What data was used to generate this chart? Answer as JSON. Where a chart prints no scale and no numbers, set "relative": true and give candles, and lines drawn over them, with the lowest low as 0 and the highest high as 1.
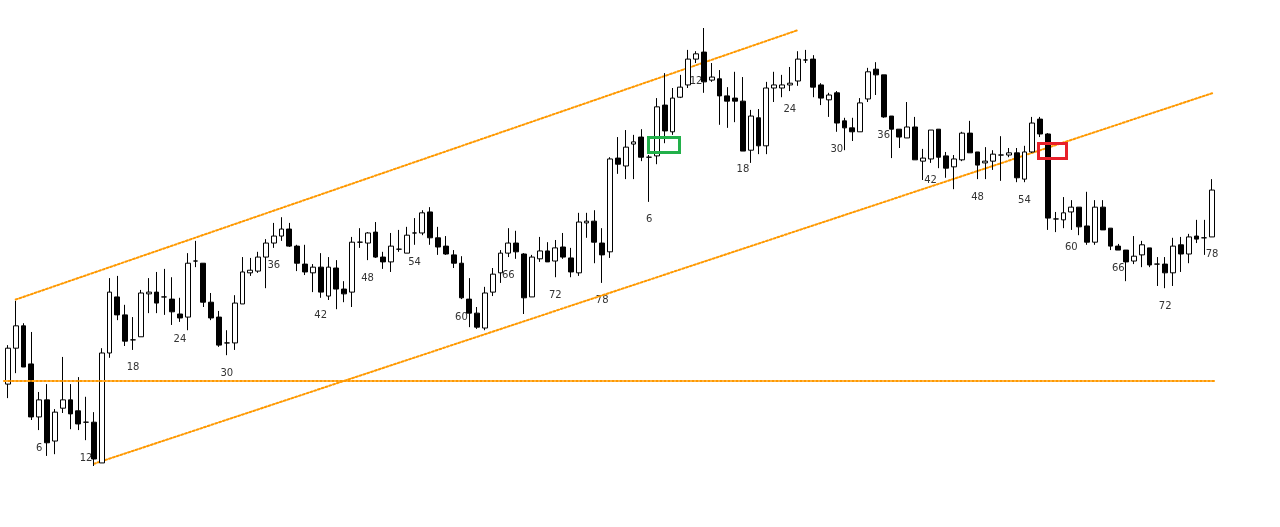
{
  "chart_data": {
    "type": "candlestick",
    "relative": true,
    "tick_labels": "x",
    "categories": [
      null,
      null,
      null,
      null,
      "6",
      null,
      null,
      null,
      null,
      null,
      "12",
      null,
      null,
      null,
      null,
      null,
      "18",
      null,
      null,
      null,
      null,
      null,
      "24",
      null,
      null,
      null,
      null,
      null,
      "30",
      null,
      null,
      null,
      null,
      null,
      "36",
      null,
      null,
      null,
      null,
      null,
      "42",
      null,
      null,
      null,
      null,
      null,
      "48",
      null,
      null,
      null,
      null,
      null,
      "54",
      null,
      null,
      null,
      null,
      null,
      "60",
      null,
      null,
      null,
      null,
      null,
      "66",
      null,
      null,
      null,
      null,
      null,
      "72",
      null,
      null,
      null,
      null,
      null,
      "78",
      null,
      null,
      null,
      null,
      null,
      "6",
      null,
      null,
      null,
      null,
      null,
      "12",
      null,
      null,
      null,
      null,
      null,
      "18",
      null,
      null,
      null,
      null,
      null,
      "24",
      null,
      null,
      null,
      null,
      null,
      "30",
      null,
      null,
      null,
      null,
      null,
      "36",
      null,
      null,
      null,
      null,
      null,
      "42",
      null,
      null,
      null,
      null,
      null,
      "48",
      null,
      null,
      null,
      null,
      null,
      "54",
      null,
      null,
      null,
      null,
      null,
      "60",
      null,
      null,
      null,
      null,
      null,
      "66",
      null,
      null,
      null,
      null,
      null,
      "72",
      null,
      null,
      null,
      null,
      null,
      "78"
    ],
    "ohlc": [
      [
        0.187,
        0.276,
        0.155,
        0.269
      ],
      [
        0.269,
        0.377,
        0.212,
        0.32
      ],
      [
        0.32,
        0.326,
        0.226,
        0.226
      ],
      [
        0.233,
        0.306,
        0.105,
        0.112
      ],
      [
        0.112,
        0.169,
        0.082,
        0.151
      ],
      [
        0.151,
        0.187,
        0.023,
        0.053
      ],
      [
        0.057,
        0.13,
        0.027,
        0.123
      ],
      [
        0.132,
        0.249,
        0.121,
        0.151
      ],
      [
        0.151,
        0.187,
        0.084,
        0.119
      ],
      [
        0.126,
        0.203,
        0.082,
        0.096
      ],
      [
        0.1,
        0.158,
        0.059,
        0.1
      ],
      [
        0.1,
        0.123,
        0,
        0.016
      ],
      [
        0.007,
        0.269,
        0.007,
        0.258
      ],
      [
        0.258,
        0.429,
        0.247,
        0.397
      ],
      [
        0.386,
        0.434,
        0.333,
        0.345
      ],
      [
        0.345,
        0.368,
        0.274,
        0.285
      ],
      [
        0.288,
        0.34,
        0.265,
        0.288
      ],
      [
        0.295,
        0.402,
        0.295,
        0.395
      ],
      [
        0.393,
        0.429,
        0.349,
        0.397
      ],
      [
        0.397,
        0.443,
        0.349,
        0.372
      ],
      [
        0.386,
        0.45,
        0.345,
        0.386
      ],
      [
        0.381,
        0.431,
        0.322,
        0.352
      ],
      [
        0.347,
        0.384,
        0.329,
        0.338
      ],
      [
        0.34,
        0.486,
        0.31,
        0.463
      ],
      [
        0.468,
        0.514,
        0.454,
        0.468
      ],
      [
        0.463,
        0.463,
        0.363,
        0.374
      ],
      [
        0.374,
        0.395,
        0.333,
        0.338
      ],
      [
        0.34,
        0.354,
        0.272,
        0.276
      ],
      [
        0.281,
        0.31,
        0.253,
        0.281
      ],
      [
        0.281,
        0.39,
        0.265,
        0.372
      ],
      [
        0.37,
        0.477,
        0.37,
        0.443
      ],
      [
        0.441,
        0.475,
        0.434,
        0.447
      ],
      [
        0.445,
        0.489,
        0.441,
        0.477
      ],
      [
        0.477,
        0.518,
        0.406,
        0.509
      ],
      [
        0.509,
        0.555,
        0.498,
        0.525
      ],
      [
        0.525,
        0.568,
        0.514,
        0.541
      ],
      [
        0.541,
        0.555,
        0.5,
        0.502
      ],
      [
        0.502,
        0.505,
        0.445,
        0.463
      ],
      [
        0.461,
        0.505,
        0.436,
        0.443
      ],
      [
        0.441,
        0.461,
        0.397,
        0.454
      ],
      [
        0.454,
        0.486,
        0.384,
        0.397
      ],
      [
        0.388,
        0.477,
        0.379,
        0.454
      ],
      [
        0.452,
        0.47,
        0.358,
        0.404
      ],
      [
        0.404,
        0.422,
        0.374,
        0.393
      ],
      [
        0.397,
        0.523,
        0.363,
        0.511
      ],
      [
        0.511,
        0.543,
        0.498,
        0.511
      ],
      [
        0.509,
        0.534,
        0.47,
        0.532
      ],
      [
        0.534,
        0.557,
        0.475,
        0.477
      ],
      [
        0.477,
        0.489,
        0.45,
        0.466
      ],
      [
        0.466,
        0.532,
        0.443,
        0.502
      ],
      [
        0.495,
        0.539,
        0.489,
        0.495
      ],
      [
        0.486,
        0.546,
        0.486,
        0.527
      ],
      [
        0.532,
        0.566,
        0.505,
        0.532
      ],
      [
        0.532,
        0.584,
        0.527,
        0.578
      ],
      [
        0.58,
        0.591,
        0.505,
        0.521
      ],
      [
        0.521,
        0.546,
        0.482,
        0.5
      ],
      [
        0.502,
        0.525,
        0.482,
        0.484
      ],
      [
        0.482,
        0.493,
        0.452,
        0.463
      ],
      [
        0.463,
        0.479,
        0.381,
        0.384
      ],
      [
        0.381,
        0.429,
        0.317,
        0.349
      ],
      [
        0.349,
        0.363,
        0.313,
        0.317
      ],
      [
        0.315,
        0.409,
        0.31,
        0.395
      ],
      [
        0.397,
        0.452,
        0.388,
        0.438
      ],
      [
        0.441,
        0.493,
        0.418,
        0.486
      ],
      [
        0.486,
        0.543,
        0.477,
        0.509
      ],
      [
        0.509,
        0.537,
        0.473,
        0.489
      ],
      [
        0.484,
        0.486,
        0.347,
        0.384
      ],
      [
        0.386,
        0.482,
        0.386,
        0.477
      ],
      [
        0.473,
        0.523,
        0.466,
        0.491
      ],
      [
        0.491,
        0.511,
        0.466,
        0.466
      ],
      [
        0.468,
        0.516,
        0.431,
        0.498
      ],
      [
        0.5,
        0.532,
        0.473,
        0.477
      ],
      [
        0.475,
        0.498,
        0.431,
        0.443
      ],
      [
        0.441,
        0.578,
        0.434,
        0.557
      ],
      [
        0.555,
        0.578,
        0.521,
        0.559
      ],
      [
        0.559,
        0.584,
        0.463,
        0.511
      ],
      [
        0.509,
        0.543,
        0.418,
        0.482
      ],
      [
        0.489,
        0.705,
        0.475,
        0.701
      ],
      [
        0.703,
        0.751,
        0.667,
        0.689
      ],
      [
        0.685,
        0.767,
        0.655,
        0.728
      ],
      [
        0.735,
        0.756,
        0.655,
        0.74
      ],
      [
        0.751,
        0.769,
        0.696,
        0.705
      ],
      [
        0.705,
        0.71,
        0.603,
        0.705
      ],
      [
        0.708,
        0.84,
        0.689,
        0.82
      ],
      [
        0.824,
        0.897,
        0.737,
        0.765
      ],
      [
        0.763,
        0.863,
        0.756,
        0.84
      ],
      [
        0.842,
        0.893,
        0.84,
        0.865
      ],
      [
        0.87,
        0.95,
        0.863,
        0.929
      ],
      [
        0.929,
        0.947,
        0.92,
        0.941
      ],
      [
        0.945,
        1.0,
        0.852,
        0.877
      ],
      [
        0.881,
        0.92,
        0.877,
        0.888
      ],
      [
        0.884,
        0.904,
        0.779,
        0.845
      ],
      [
        0.845,
        0.865,
        0.772,
        0.833
      ],
      [
        0.84,
        0.9,
        0.785,
        0.833
      ],
      [
        0.833,
        0.888,
        0.719,
        0.719
      ],
      [
        0.721,
        0.813,
        0.692,
        0.799
      ],
      [
        0.795,
        0.815,
        0.712,
        0.731
      ],
      [
        0.731,
        0.877,
        0.712,
        0.863
      ],
      [
        0.863,
        0.9,
        0.831,
        0.87
      ],
      [
        0.863,
        0.893,
        0.842,
        0.87
      ],
      [
        0.87,
        0.911,
        0.856,
        0.874
      ],
      [
        0.879,
        0.947,
        0.868,
        0.929
      ],
      [
        0.927,
        0.95,
        0.92,
        0.927
      ],
      [
        0.929,
        0.938,
        0.842,
        0.865
      ],
      [
        0.87,
        0.874,
        0.824,
        0.84
      ],
      [
        0.836,
        0.852,
        0.797,
        0.847
      ],
      [
        0.852,
        0.856,
        0.763,
        0.783
      ],
      [
        0.788,
        0.795,
        0.721,
        0.772
      ],
      [
        0.772,
        0.795,
        0.742,
        0.763
      ],
      [
        0.763,
        0.84,
        0.763,
        0.829
      ],
      [
        0.838,
        0.909,
        0.831,
        0.9
      ],
      [
        0.906,
        0.922,
        0.847,
        0.893
      ],
      [
        0.893,
        0.893,
        0.795,
        0.797
      ],
      [
        0.799,
        0.799,
        0.703,
        0.769
      ],
      [
        0.769,
        0.769,
        0.726,
        0.751
      ],
      [
        0.749,
        0.831,
        0.749,
        0.774
      ],
      [
        0.774,
        0.797,
        0.699,
        0.699
      ],
      [
        0.696,
        0.724,
        0.653,
        0.703
      ],
      [
        0.701,
        0.767,
        0.692,
        0.767
      ],
      [
        0.769,
        0.769,
        0.68,
        0.705
      ],
      [
        0.708,
        0.717,
        0.658,
        0.68
      ],
      [
        0.683,
        0.71,
        0.632,
        0.701
      ],
      [
        0.699,
        0.763,
        0.696,
        0.76
      ],
      [
        0.76,
        0.788,
        0.715,
        0.715
      ],
      [
        0.717,
        0.717,
        0.655,
        0.687
      ],
      [
        0.692,
        0.728,
        0.655,
        0.696
      ],
      [
        0.696,
        0.721,
        0.676,
        0.712
      ],
      [
        0.71,
        0.753,
        0.651,
        0.71
      ],
      [
        0.71,
        0.726,
        0.705,
        0.715
      ],
      [
        0.715,
        0.726,
        0.648,
        0.658
      ],
      [
        0.655,
        0.731,
        0.648,
        0.717
      ],
      [
        0.717,
        0.797,
        0.715,
        0.783
      ],
      [
        0.792,
        0.797,
        0.751,
        0.758
      ],
      [
        0.758,
        0.76,
        0.539,
        0.566
      ],
      [
        0.564,
        0.58,
        0.534,
        0.564
      ],
      [
        0.562,
        0.614,
        0.543,
        0.578
      ],
      [
        0.58,
        0.607,
        0.539,
        0.591
      ],
      [
        0.591,
        0.591,
        0.527,
        0.546
      ],
      [
        0.548,
        0.626,
        0.505,
        0.511
      ],
      [
        0.511,
        0.607,
        0.505,
        0.591
      ],
      [
        0.591,
        0.607,
        0.539,
        0.539
      ],
      [
        0.543,
        0.543,
        0.493,
        0.502
      ],
      [
        0.502,
        0.507,
        0.493,
        0.493
      ],
      [
        0.493,
        0.493,
        0.422,
        0.466
      ],
      [
        0.468,
        0.525,
        0.461,
        0.479
      ],
      [
        0.482,
        0.514,
        0.454,
        0.505
      ],
      [
        0.498,
        0.498,
        0.454,
        0.459
      ],
      [
        0.461,
        0.477,
        0.411,
        0.461
      ],
      [
        0.461,
        0.477,
        0.406,
        0.441
      ],
      [
        0.441,
        0.521,
        0.411,
        0.502
      ],
      [
        0.505,
        0.523,
        0.443,
        0.484
      ],
      [
        0.484,
        0.53,
        0.463,
        0.523
      ],
      [
        0.525,
        0.562,
        0.509,
        0.518
      ],
      [
        0.521,
        0.562,
        0.482,
        0.521
      ],
      [
        0.523,
        0.655,
        0.523,
        0.63
      ]
    ],
    "colors": [
      "#ffffff",
      "#ffffff",
      "#000000",
      "#000000",
      "#ffffff",
      "#000000",
      "#ffffff",
      "#ffffff",
      "#000000",
      "#000000",
      "#000000",
      "#000000",
      "#ffffff",
      "#ffffff",
      "#000000",
      "#000000",
      "#000000",
      "#ffffff",
      "#ffffff",
      "#000000",
      "#000000",
      "#000000",
      "#000000",
      "#ffffff",
      "#000000",
      "#000000",
      "#000000",
      "#000000",
      "#000000",
      "#ffffff",
      "#ffffff",
      "#ffffff",
      "#ffffff",
      "#ffffff",
      "#ffffff",
      "#ffffff",
      "#000000",
      "#000000",
      "#000000",
      "#ffffff",
      "#000000",
      "#ffffff",
      "#000000",
      "#000000",
      "#ffffff",
      "#000000",
      "#ffffff",
      "#000000",
      "#000000",
      "#ffffff",
      "#000000",
      "#ffffff",
      "#000000",
      "#ffffff",
      "#000000",
      "#000000",
      "#000000",
      "#000000",
      "#000000",
      "#000000",
      "#000000",
      "#ffffff",
      "#ffffff",
      "#ffffff",
      "#ffffff",
      "#000000",
      "#000000",
      "#ffffff",
      "#ffffff",
      "#000000",
      "#ffffff",
      "#000000",
      "#000000",
      "#ffffff",
      "#ffffff",
      "#000000",
      "#000000",
      "#ffffff",
      "#000000",
      "#ffffff",
      "#ffffff",
      "#000000",
      "#000000",
      "#ffffff",
      "#000000",
      "#ffffff",
      "#ffffff",
      "#ffffff",
      "#ffffff",
      "#000000",
      "#ffffff",
      "#000000",
      "#000000",
      "#000000",
      "#000000",
      "#ffffff",
      "#000000",
      "#ffffff",
      "#ffffff",
      "#ffffff",
      "#ffffff",
      "#ffffff",
      "#000000",
      "#000000",
      "#000000",
      "#ffffff",
      "#000000",
      "#000000",
      "#000000",
      "#ffffff",
      "#ffffff",
      "#000000",
      "#000000",
      "#000000",
      "#000000",
      "#ffffff",
      "#000000",
      "#ffffff",
      "#ffffff",
      "#000000",
      "#000000",
      "#ffffff",
      "#ffffff",
      "#000000",
      "#000000",
      "#ffffff",
      "#ffffff",
      "#000000",
      "#ffffff",
      "#000000",
      "#ffffff",
      "#ffffff",
      "#000000",
      "#000000",
      "#000000",
      "#ffffff",
      "#ffffff",
      "#000000",
      "#000000",
      "#ffffff",
      "#000000",
      "#000000",
      "#000000",
      "#000000",
      "#ffffff",
      "#ffffff",
      "#000000",
      "#000000",
      "#000000",
      "#ffffff",
      "#000000",
      "#ffffff",
      "#000000",
      "#000000",
      "#ffffff"
    ],
    "series": [
      {
        "type": "line",
        "color": "#ff9900",
        "line_style": "dotted",
        "values": [
          null,
          0.38,
          null,
          null,
          null,
          null,
          null,
          null,
          null,
          null,
          null,
          null,
          null,
          null,
          null,
          null,
          null,
          null,
          null,
          null,
          null,
          null,
          null,
          null,
          null,
          null,
          null,
          null,
          null,
          null,
          null,
          null,
          null,
          null,
          null,
          null,
          null,
          null,
          null,
          null,
          null,
          null,
          null,
          null,
          null,
          null,
          null,
          null,
          null,
          null,
          null,
          null,
          null,
          null,
          null,
          null,
          null,
          null,
          null,
          null,
          null,
          null,
          null,
          null,
          null,
          null,
          null,
          null,
          null,
          null,
          null,
          null,
          null,
          null,
          null,
          null,
          null,
          null,
          null,
          null,
          null,
          null,
          null,
          null,
          null,
          null,
          null,
          null,
          null,
          null,
          null,
          null,
          null,
          null,
          null,
          null,
          null,
          null,
          null,
          null,
          null,
          0.995,
          null,
          null,
          null,
          null,
          null,
          null,
          null,
          null,
          null,
          null,
          null,
          null,
          null,
          null,
          null,
          null,
          null,
          null,
          null,
          null,
          null,
          null,
          null,
          null,
          null,
          null,
          null,
          null,
          null,
          null,
          null,
          null,
          null,
          null,
          null,
          null,
          null,
          null,
          null,
          null,
          null,
          null,
          null,
          null,
          null,
          null,
          null,
          null,
          null,
          null,
          null,
          null,
          null
        ]
      },
      {
        "type": "line",
        "color": "#ff9900",
        "line_style": "dotted",
        "values": [
          null,
          null,
          null,
          null,
          null,
          null,
          null,
          null,
          null,
          null,
          null,
          0.005,
          null,
          null,
          null,
          null,
          null,
          null,
          null,
          null,
          null,
          null,
          null,
          null,
          null,
          null,
          null,
          null,
          null,
          null,
          null,
          null,
          null,
          null,
          null,
          null,
          null,
          null,
          null,
          null,
          null,
          null,
          null,
          null,
          null,
          null,
          null,
          null,
          null,
          null,
          null,
          null,
          null,
          null,
          null,
          null,
          null,
          null,
          null,
          null,
          null,
          null,
          null,
          null,
          null,
          null,
          null,
          null,
          null,
          null,
          null,
          null,
          null,
          null,
          null,
          null,
          null,
          null,
          null,
          null,
          null,
          null,
          null,
          null,
          null,
          null,
          null,
          null,
          null,
          null,
          null,
          null,
          null,
          null,
          null,
          null,
          null,
          null,
          null,
          null,
          null,
          null,
          null,
          null,
          null,
          null,
          null,
          null,
          null,
          null,
          null,
          null,
          null,
          null,
          null,
          null,
          null,
          null,
          null,
          null,
          null,
          null,
          null,
          null,
          null,
          null,
          null,
          null,
          null,
          null,
          null,
          null,
          null,
          null,
          null,
          null,
          null,
          null,
          null,
          null,
          null,
          null,
          null,
          null,
          null,
          null,
          null,
          null,
          null,
          null,
          null,
          null,
          null,
          null,
          0.851
        ]
      }
    ],
    "ref_lines": [
      {
        "axis": "y",
        "value": 0.194,
        "color": "#ff9900",
        "line_style": "dotted"
      }
    ]
  }
}
